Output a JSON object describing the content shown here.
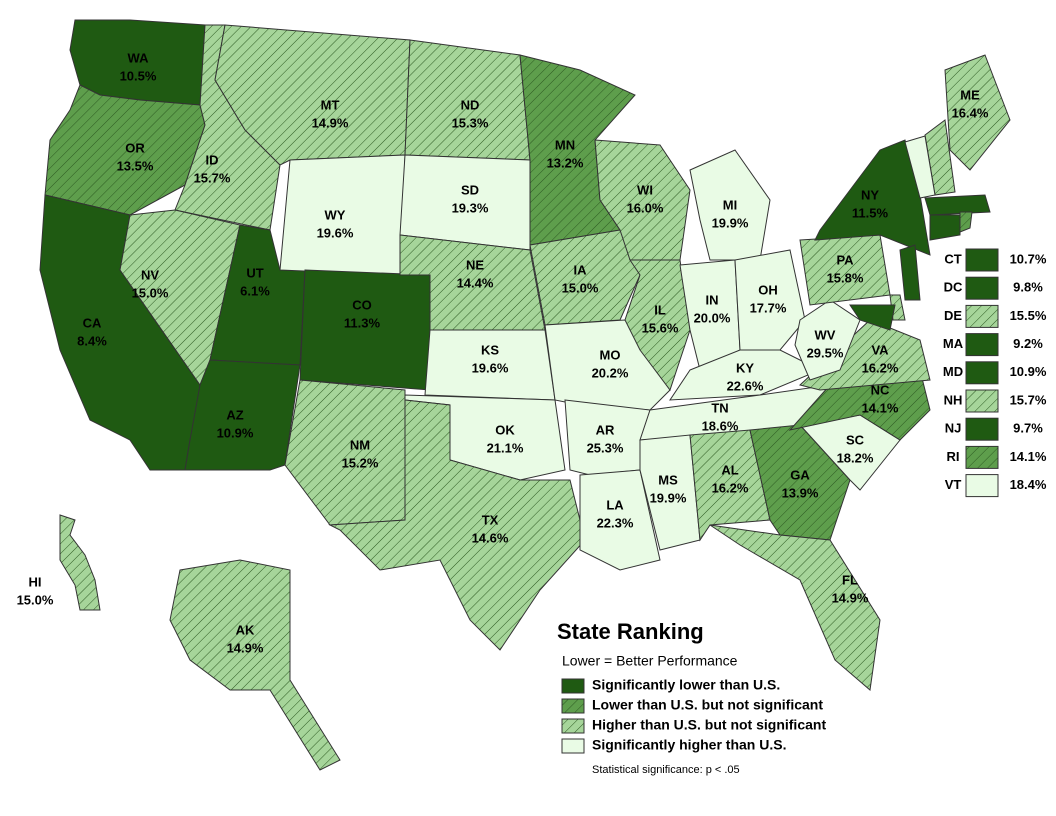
{
  "classes": [
    {
      "label": "Significantly lower than U.S.",
      "color": "#1f5a12",
      "hatched": false
    },
    {
      "label": "Lower than U.S. but not significant",
      "color": "#5e9e4c",
      "hatched": true
    },
    {
      "label": "Higher than U.S. but not significant",
      "color": "#a6d59a",
      "hatched": true
    },
    {
      "label": "Significantly higher than U.S.",
      "color": "#e9fbe5",
      "hatched": false
    }
  ],
  "legend": {
    "title": "State Ranking",
    "subtitle": "Lower = Better Performance",
    "note": "Statistical significance: p < .05"
  },
  "states": [
    {
      "abbr": "WA",
      "value": "10.5%",
      "class": 0
    },
    {
      "abbr": "OR",
      "value": "13.5%",
      "class": 1
    },
    {
      "abbr": "CA",
      "value": "8.4%",
      "class": 0
    },
    {
      "abbr": "ID",
      "value": "15.7%",
      "class": 2
    },
    {
      "abbr": "NV",
      "value": "15.0%",
      "class": 2
    },
    {
      "abbr": "UT",
      "value": "6.1%",
      "class": 0
    },
    {
      "abbr": "AZ",
      "value": "10.9%",
      "class": 0
    },
    {
      "abbr": "MT",
      "value": "14.9%",
      "class": 2
    },
    {
      "abbr": "WY",
      "value": "19.6%",
      "class": 3
    },
    {
      "abbr": "CO",
      "value": "11.3%",
      "class": 0
    },
    {
      "abbr": "NM",
      "value": "15.2%",
      "class": 2
    },
    {
      "abbr": "ND",
      "value": "15.3%",
      "class": 2
    },
    {
      "abbr": "SD",
      "value": "19.3%",
      "class": 3
    },
    {
      "abbr": "NE",
      "value": "14.4%",
      "class": 2
    },
    {
      "abbr": "KS",
      "value": "19.6%",
      "class": 3
    },
    {
      "abbr": "OK",
      "value": "21.1%",
      "class": 3
    },
    {
      "abbr": "TX",
      "value": "14.6%",
      "class": 2
    },
    {
      "abbr": "MN",
      "value": "13.2%",
      "class": 1
    },
    {
      "abbr": "IA",
      "value": "15.0%",
      "class": 2
    },
    {
      "abbr": "MO",
      "value": "20.2%",
      "class": 3
    },
    {
      "abbr": "AR",
      "value": "25.3%",
      "class": 3
    },
    {
      "abbr": "LA",
      "value": "22.3%",
      "class": 3
    },
    {
      "abbr": "WI",
      "value": "16.0%",
      "class": 2
    },
    {
      "abbr": "IL",
      "value": "15.6%",
      "class": 2
    },
    {
      "abbr": "MI",
      "value": "19.9%",
      "class": 3
    },
    {
      "abbr": "IN",
      "value": "20.0%",
      "class": 3
    },
    {
      "abbr": "OH",
      "value": "17.7%",
      "class": 3
    },
    {
      "abbr": "KY",
      "value": "22.6%",
      "class": 3
    },
    {
      "abbr": "TN",
      "value": "18.6%",
      "class": 3
    },
    {
      "abbr": "MS",
      "value": "19.9%",
      "class": 3
    },
    {
      "abbr": "AL",
      "value": "16.2%",
      "class": 2
    },
    {
      "abbr": "GA",
      "value": "13.9%",
      "class": 1
    },
    {
      "abbr": "FL",
      "value": "14.9%",
      "class": 2
    },
    {
      "abbr": "SC",
      "value": "18.2%",
      "class": 3
    },
    {
      "abbr": "NC",
      "value": "14.1%",
      "class": 1
    },
    {
      "abbr": "VA",
      "value": "16.2%",
      "class": 2
    },
    {
      "abbr": "WV",
      "value": "29.5%",
      "class": 3
    },
    {
      "abbr": "PA",
      "value": "15.8%",
      "class": 2
    },
    {
      "abbr": "NY",
      "value": "11.5%",
      "class": 0
    },
    {
      "abbr": "ME",
      "value": "16.4%",
      "class": 2
    },
    {
      "abbr": "HI",
      "value": "15.0%",
      "class": 2
    },
    {
      "abbr": "AK",
      "value": "14.9%",
      "class": 2
    }
  ],
  "inset": [
    {
      "abbr": "CT",
      "value": "10.7%",
      "class": 0
    },
    {
      "abbr": "DC",
      "value": "9.8%",
      "class": 0
    },
    {
      "abbr": "DE",
      "value": "15.5%",
      "class": 2
    },
    {
      "abbr": "MA",
      "value": "9.2%",
      "class": 0
    },
    {
      "abbr": "MD",
      "value": "10.9%",
      "class": 0
    },
    {
      "abbr": "NH",
      "value": "15.7%",
      "class": 2
    },
    {
      "abbr": "NJ",
      "value": "9.7%",
      "class": 0
    },
    {
      "abbr": "RI",
      "value": "14.1%",
      "class": 1
    },
    {
      "abbr": "VT",
      "value": "18.4%",
      "class": 3
    }
  ]
}
